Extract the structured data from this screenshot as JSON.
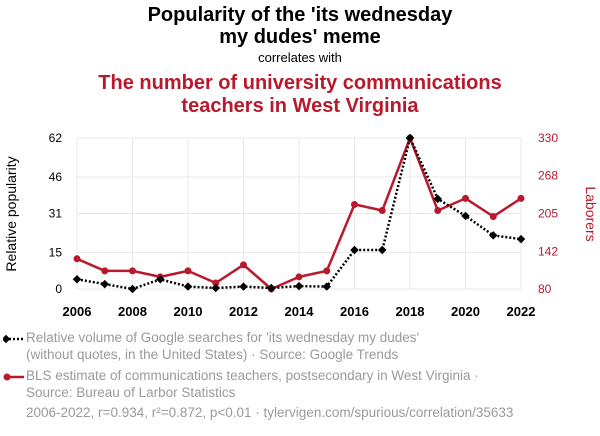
{
  "header": {
    "title_line1": "Popularity of the 'its wednesday",
    "title_line2": "my dudes' meme",
    "correlates": "correlates with",
    "title2_line1": "The number of university communications",
    "title2_line2": "teachers in West Virginia"
  },
  "colors": {
    "series1": "#000000",
    "series2": "#b8192d",
    "grid": "#e8e8e8",
    "muted": "#9a9a9a"
  },
  "chart_data": {
    "type": "line",
    "x": [
      2006,
      2007,
      2008,
      2009,
      2010,
      2011,
      2012,
      2013,
      2014,
      2015,
      2016,
      2017,
      2018,
      2019,
      2020,
      2021,
      2022
    ],
    "xticks": [
      "2006",
      "2008",
      "2010",
      "2012",
      "2014",
      "2016",
      "2018",
      "2020",
      "2022"
    ],
    "xlim": [
      2006,
      2022
    ],
    "ylabel_left": "Relative popularity",
    "ylabel_right": "Laborers",
    "yticks_left": [
      "0",
      "15",
      "31",
      "46",
      "62"
    ],
    "ylim_left": [
      0,
      62
    ],
    "yticks_right": [
      "80",
      "142",
      "205",
      "268",
      "330"
    ],
    "ylim_right": [
      80,
      330
    ],
    "grid": true,
    "series": [
      {
        "name": "Relative volume of Google searches for 'its wednesday my dudes' (without quotes, in the United States) · Source: Google Trends",
        "axis": "left",
        "style": "dotted",
        "marker": "diamond",
        "values": [
          4,
          2,
          0,
          4,
          1,
          0.4,
          1,
          0.4,
          1.2,
          1,
          16,
          16,
          62,
          37,
          30,
          22,
          20.5
        ]
      },
      {
        "name": "BLS estimate of communications teachers, postsecondary in West Virginia · Source: Bureau of Larbor Statistics",
        "axis": "right",
        "style": "solid",
        "marker": "circle",
        "values": [
          130,
          110,
          110,
          100,
          110,
          90,
          120,
          80,
          100,
          110,
          220,
          210,
          330,
          210,
          230,
          200,
          230
        ]
      }
    ]
  },
  "legend": {
    "item1_line1": "Relative volume of Google searches for 'its wednesday my dudes'",
    "item1_line2": "(without quotes, in the United States) · Source: Google Trends",
    "item2_line1": "BLS estimate of communications teachers, postsecondary in West Virginia ·",
    "item2_line2": "Source: Bureau of Larbor Statistics"
  },
  "footer": "2006-2022, r=0.934, r²=0.872, p<0.01 · tylervigen.com/spurious/correlation/35633"
}
